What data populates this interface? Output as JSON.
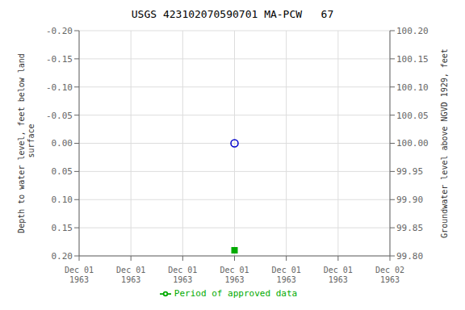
{
  "chart_data": {
    "type": "scatter",
    "title": "USGS 423102070590701 MA-PCW   67",
    "ylabel": "Depth to water level, feet below land\n surface",
    "y2label": "Groundwater level above NGVD 1929, feet",
    "categories": [
      "Dec 01\n1963",
      "Dec 01\n1963",
      "Dec 01\n1963",
      "Dec 01\n1963",
      "Dec 01\n1963",
      "Dec 01\n1963",
      "Dec 02\n1963"
    ],
    "series": [
      {
        "color": "#0000cc",
        "marker": "circle",
        "values": [
          null,
          null,
          null,
          0,
          null,
          null,
          null
        ]
      },
      {
        "name": "Period of approved data",
        "color": "#00aa00",
        "marker": "square",
        "values": [
          null,
          null,
          null,
          0.19,
          null,
          null,
          null
        ]
      }
    ],
    "ylim": [
      0.2,
      -0.2
    ],
    "yticks": [
      {
        "value": -0.2,
        "label": "-0.20"
      },
      -0.15,
      {
        "value": -0.1,
        "label": "-0.10"
      },
      -0.05,
      {
        "value": 0,
        "label": "0.00"
      },
      0.05,
      {
        "value": 0.1,
        "label": "0.10"
      },
      0.15,
      {
        "value": 0.2,
        "label": "0.20"
      }
    ],
    "y2lim": [
      99.8,
      100.2
    ],
    "y2ticks": [
      {
        "value": 100.2,
        "label": "100.20"
      },
      100.15,
      {
        "value": 100.1,
        "label": "100.10"
      },
      100.05,
      {
        "value": 100,
        "label": "100.00"
      },
      99.95,
      {
        "value": 99.9,
        "label": "99.90"
      },
      99.85,
      {
        "value": 99.8,
        "label": "99.80"
      }
    ],
    "grid": true,
    "legend": "bottom"
  }
}
